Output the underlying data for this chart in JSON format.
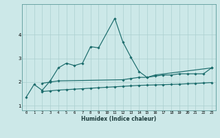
{
  "xlabel": "Humidex (Indice chaleur)",
  "bg_color": "#cce8e8",
  "line_color": "#1a6b6b",
  "grid_color": "#aacfcf",
  "ylim": [
    0.8,
    5.3
  ],
  "xlim": [
    -0.5,
    23.5
  ],
  "yticks": [
    1,
    2,
    3,
    4
  ],
  "xticks": [
    0,
    1,
    2,
    3,
    4,
    5,
    6,
    7,
    8,
    9,
    10,
    11,
    12,
    13,
    14,
    15,
    16,
    17,
    18,
    19,
    20,
    21,
    22,
    23
  ],
  "series1_x": [
    0,
    1,
    2,
    3,
    4,
    5,
    6,
    7,
    8,
    9,
    11,
    12,
    13,
    14,
    15,
    16,
    23
  ],
  "series1_y": [
    1.35,
    1.9,
    1.65,
    2.05,
    2.6,
    2.8,
    2.7,
    2.8,
    3.5,
    3.45,
    4.7,
    3.7,
    3.05,
    2.45,
    2.2,
    2.3,
    2.6
  ],
  "series2_x": [
    2,
    3,
    4,
    12,
    13,
    14,
    15,
    16,
    17,
    18,
    19,
    20,
    21,
    22,
    23
  ],
  "series2_y": [
    1.95,
    2.0,
    2.05,
    2.1,
    2.15,
    2.2,
    2.2,
    2.25,
    2.3,
    2.3,
    2.35,
    2.35,
    2.35,
    2.35,
    2.6
  ],
  "series3_x": [
    2,
    3,
    4,
    5,
    6,
    7,
    8,
    9,
    10,
    11,
    12,
    13,
    14,
    15,
    16,
    17,
    18,
    19,
    20,
    21,
    22,
    23
  ],
  "series3_y": [
    1.6,
    1.63,
    1.66,
    1.68,
    1.7,
    1.72,
    1.74,
    1.76,
    1.78,
    1.8,
    1.82,
    1.84,
    1.86,
    1.87,
    1.88,
    1.89,
    1.9,
    1.91,
    1.93,
    1.94,
    1.96,
    1.98
  ]
}
